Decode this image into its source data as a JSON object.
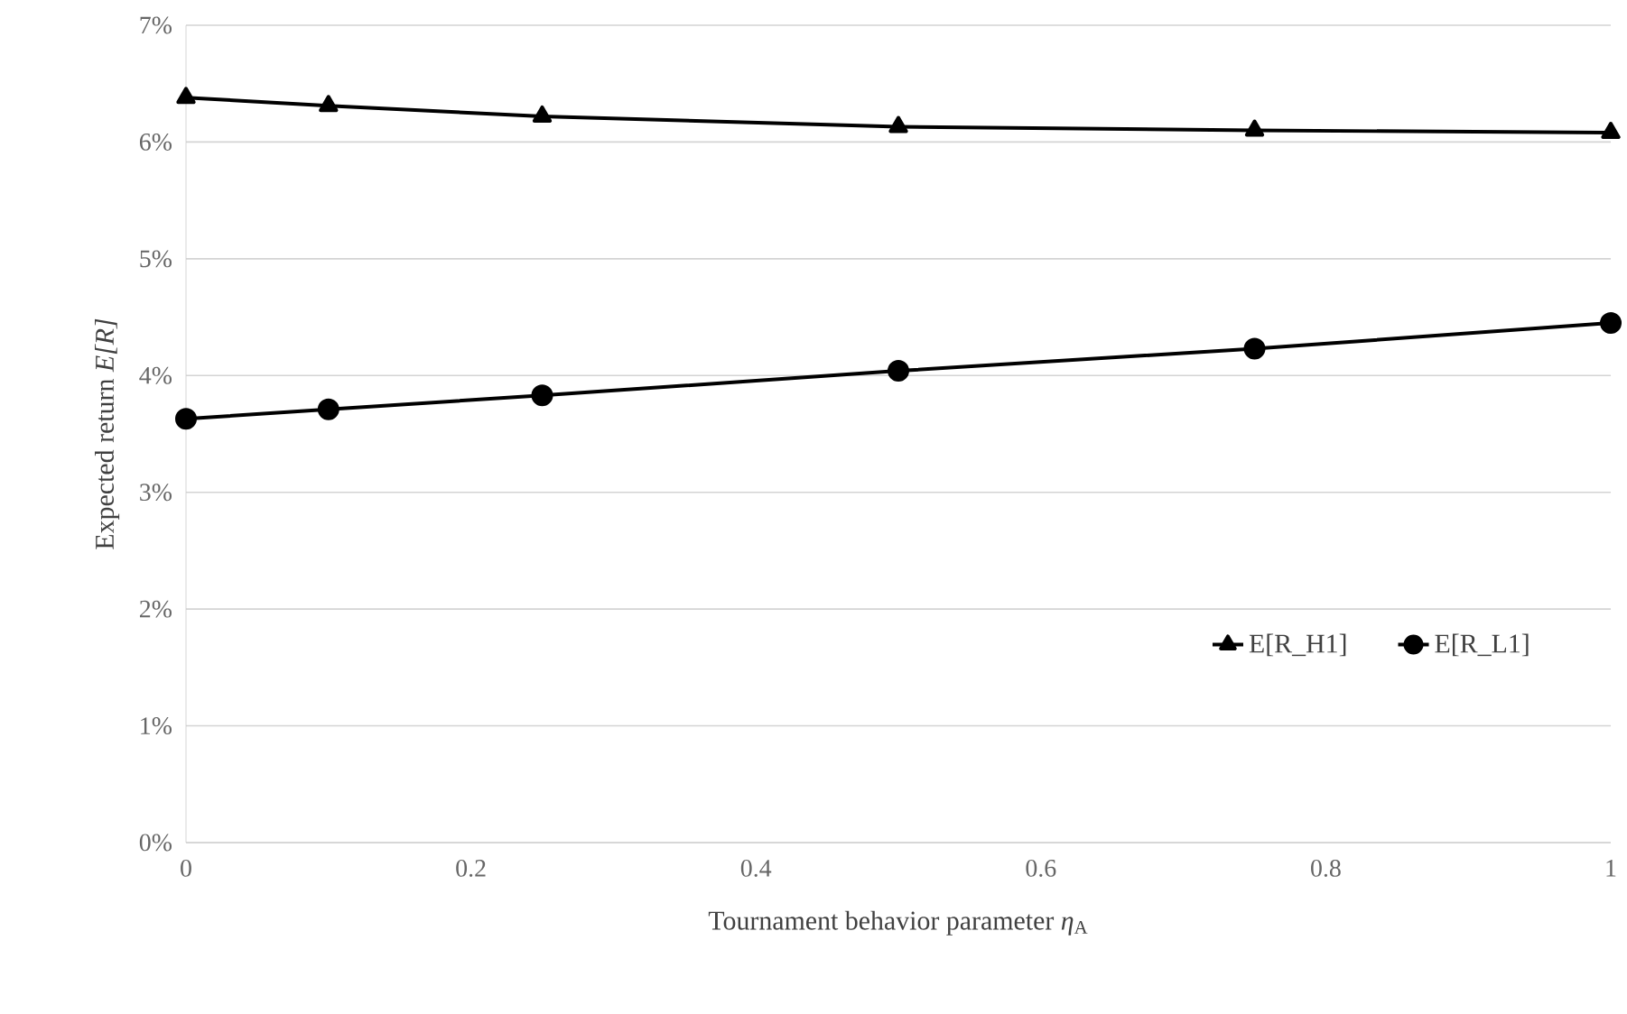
{
  "chart_data": {
    "type": "line",
    "xlabel": "Tournament behavior parameter *η*$_{A}$",
    "ylabel": "Expected return *E[R]*",
    "x": [
      0,
      0.1,
      0.25,
      0.5,
      0.75,
      1
    ],
    "series": [
      {
        "name": "E[R_H1]",
        "color": "#000000",
        "marker": "triangle",
        "values": [
          6.38,
          6.31,
          6.22,
          6.13,
          6.1,
          6.08
        ]
      },
      {
        "name": "E[R_L1]",
        "color": "#000000",
        "marker": "circle",
        "values": [
          3.63,
          3.71,
          3.83,
          4.04,
          4.23,
          4.45
        ]
      }
    ],
    "xlim": [
      0,
      1
    ],
    "xticks": [
      0,
      0.2,
      0.4,
      0.6,
      0.8,
      1
    ],
    "ylim": [
      0,
      7
    ],
    "yticks": [
      {
        "value": 0,
        "label": "0%"
      },
      {
        "value": 1,
        "label": "1%"
      },
      {
        "value": 2,
        "label": "2%"
      },
      {
        "value": 3,
        "label": "3%"
      },
      {
        "value": 4,
        "label": "4%"
      },
      {
        "value": 5,
        "label": "5%"
      },
      {
        "value": 6,
        "label": "6%"
      },
      {
        "value": 7,
        "label": "7%"
      }
    ],
    "grid": "y",
    "legend": "bottom right",
    "line_style": "solid"
  }
}
